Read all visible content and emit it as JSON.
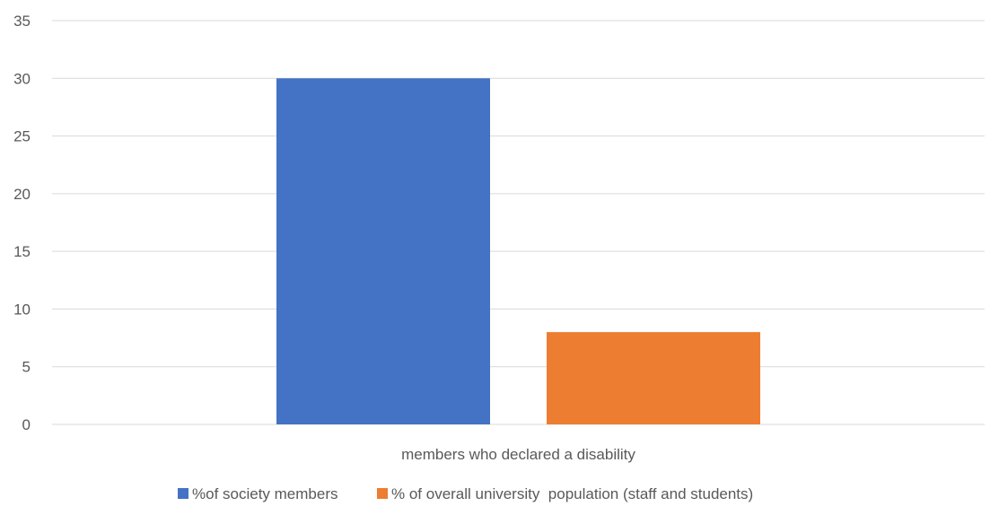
{
  "chart_data": {
    "type": "bar",
    "title": "",
    "xlabel": "",
    "ylabel": "",
    "categories": [
      "members who declared a disability"
    ],
    "series": [
      {
        "name": "%of society members",
        "values": [
          30
        ],
        "color": "#4472C4"
      },
      {
        "name": "% of overall university  population (staff and students)",
        "values": [
          8
        ],
        "color": "#ED7D31"
      }
    ],
    "ylim": [
      0,
      35
    ],
    "yticks": [
      0,
      5,
      10,
      15,
      20,
      25,
      30,
      35
    ],
    "grid": true,
    "legend": "bottom"
  },
  "colors": {
    "gridline": "#D9D9D9",
    "text": "#595959"
  }
}
